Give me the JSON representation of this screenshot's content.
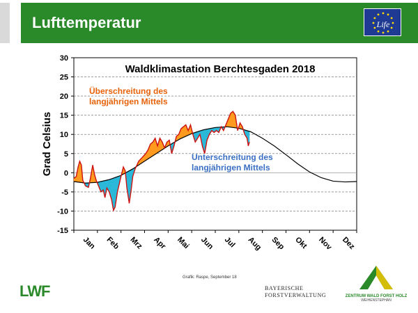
{
  "header": {
    "title": "Lufttemperatur",
    "logo_text": "Life"
  },
  "chart_data": {
    "type": "area",
    "title": "Waldklimastation Berchtesgaden 2018",
    "ylabel": "Grad Celsius",
    "xlabel": "",
    "ylim": [
      -15,
      30
    ],
    "yticks": [
      -15,
      -10,
      -5,
      0,
      5,
      10,
      15,
      20,
      25,
      30
    ],
    "xlim": [
      0,
      12
    ],
    "months": [
      "Jan",
      "Feb",
      "Mrz",
      "Apr",
      "Mai",
      "Jun",
      "Jul",
      "Aug",
      "Sep",
      "Okt",
      "Nov",
      "Dez"
    ],
    "grid": true,
    "annotations": [
      {
        "text": "Überschreitung des",
        "color": "#e8620a"
      },
      {
        "text": "langjährigen Mittels",
        "color": "#e8620a"
      },
      {
        "text": "Unterschreitung des",
        "color": "#3a6fc4"
      },
      {
        "text": "langjährigen Mittels",
        "color": "#3a6fc4"
      }
    ],
    "colors": {
      "above": "#ff9a1e",
      "below": "#2ab8d8",
      "temperature_line": "#cc1111",
      "mean_line": "#000000"
    },
    "series": [
      {
        "values": [
          [
            0.0,
            -1.5
          ],
          [
            0.1,
            -1.0
          ],
          [
            0.18,
            1.5
          ],
          [
            0.25,
            3.0
          ],
          [
            0.32,
            2.0
          ],
          [
            0.38,
            -2.0
          ],
          [
            0.5,
            -3.5
          ],
          [
            0.62,
            -3.8
          ],
          [
            0.7,
            -1.5
          ],
          [
            0.8,
            2.0
          ],
          [
            0.88,
            -0.5
          ],
          [
            0.95,
            -2.0
          ],
          [
            1.05,
            -3.5
          ],
          [
            1.15,
            -5.0
          ],
          [
            1.25,
            -4.5
          ],
          [
            1.32,
            -6.5
          ],
          [
            1.4,
            -4.0
          ],
          [
            1.5,
            -5.0
          ],
          [
            1.6,
            -7.0
          ],
          [
            1.68,
            -9.8
          ],
          [
            1.75,
            -9.0
          ],
          [
            1.85,
            -5.0
          ],
          [
            2.0,
            -1.0
          ],
          [
            2.1,
            1.5
          ],
          [
            2.18,
            0.5
          ],
          [
            2.25,
            -4.0
          ],
          [
            2.35,
            -8.0
          ],
          [
            2.42,
            -5.0
          ],
          [
            2.5,
            -1.0
          ],
          [
            2.6,
            1.0
          ],
          [
            2.75,
            3.0
          ],
          [
            2.9,
            4.0
          ],
          [
            3.05,
            5.0
          ],
          [
            3.15,
            6.0
          ],
          [
            3.25,
            7.5
          ],
          [
            3.35,
            8.0
          ],
          [
            3.45,
            9.0
          ],
          [
            3.55,
            7.0
          ],
          [
            3.65,
            9.0
          ],
          [
            3.75,
            8.0
          ],
          [
            3.85,
            6.5
          ],
          [
            3.95,
            8.0
          ],
          [
            4.05,
            8.5
          ],
          [
            4.15,
            5.0
          ],
          [
            4.25,
            7.0
          ],
          [
            4.35,
            9.5
          ],
          [
            4.45,
            10.0
          ],
          [
            4.55,
            11.5
          ],
          [
            4.65,
            12.0
          ],
          [
            4.75,
            12.5
          ],
          [
            4.85,
            11.0
          ],
          [
            4.95,
            12.5
          ],
          [
            5.05,
            10.0
          ],
          [
            5.15,
            8.0
          ],
          [
            5.25,
            9.0
          ],
          [
            5.35,
            10.0
          ],
          [
            5.45,
            7.0
          ],
          [
            5.55,
            5.0
          ],
          [
            5.65,
            8.5
          ],
          [
            5.75,
            10.0
          ],
          [
            5.85,
            11.0
          ],
          [
            5.95,
            10.5
          ],
          [
            6.05,
            11.0
          ],
          [
            6.15,
            10.5
          ],
          [
            6.25,
            12.0
          ],
          [
            6.35,
            11.0
          ],
          [
            6.45,
            12.5
          ],
          [
            6.55,
            14.0
          ],
          [
            6.65,
            15.5
          ],
          [
            6.75,
            16.0
          ],
          [
            6.85,
            15.0
          ],
          [
            6.95,
            11.0
          ],
          [
            7.05,
            13.0
          ],
          [
            7.15,
            12.0
          ],
          [
            7.25,
            10.0
          ],
          [
            7.35,
            9.0
          ],
          [
            7.4,
            7.0
          ],
          [
            7.45,
            8.0
          ]
        ]
      },
      {
        "values": [
          [
            0.0,
            -2.3
          ],
          [
            0.5,
            -2.7
          ],
          [
            1.0,
            -2.5
          ],
          [
            1.5,
            -1.8
          ],
          [
            2.0,
            -0.7
          ],
          [
            2.5,
            1.0
          ],
          [
            3.0,
            3.0
          ],
          [
            3.5,
            5.0
          ],
          [
            4.0,
            7.0
          ],
          [
            4.5,
            8.8
          ],
          [
            5.0,
            10.2
          ],
          [
            5.5,
            11.2
          ],
          [
            6.0,
            11.8
          ],
          [
            6.5,
            12.0
          ],
          [
            7.0,
            11.6
          ],
          [
            7.5,
            10.7
          ],
          [
            8.0,
            9.0
          ],
          [
            8.5,
            7.0
          ],
          [
            9.0,
            4.7
          ],
          [
            9.5,
            2.3
          ],
          [
            10.0,
            0.2
          ],
          [
            10.5,
            -1.3
          ],
          [
            11.0,
            -2.2
          ],
          [
            11.5,
            -2.4
          ],
          [
            12.0,
            -2.3
          ]
        ]
      }
    ]
  },
  "footer": {
    "credit": "Grafik: Raspe, September 18",
    "lwf_logo_text": "LWF",
    "bfv_line1": "BAYERISCHE",
    "bfv_line2": "FORSTVERWALTUNG",
    "zwfh_line1": "ZENTRUM WALD FORST HOLZ",
    "zwfh_line2": "WEIHENSTEPHAN"
  }
}
